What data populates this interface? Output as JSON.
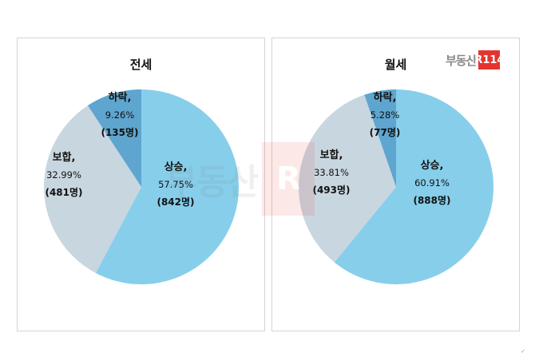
{
  "logo": {
    "text": "부동산",
    "badge": "R114"
  },
  "chart_data": [
    {
      "type": "pie",
      "title": "전세",
      "slices": [
        {
          "label": "상승,",
          "percent": 57.75,
          "percent_text": "57.75%",
          "count_text": "(842명)",
          "color": "#87ceeb"
        },
        {
          "label": "보합,",
          "percent": 32.99,
          "percent_text": "32.99%",
          "count_text": "(481명)",
          "color": "#c8d6df"
        },
        {
          "label": "하락,",
          "percent": 9.26,
          "percent_text": "9.26%",
          "count_text": "(135명)",
          "color": "#5ea5cf"
        }
      ]
    },
    {
      "type": "pie",
      "title": "월세",
      "slices": [
        {
          "label": "상승,",
          "percent": 60.91,
          "percent_text": "60.91%",
          "count_text": "(888명)",
          "color": "#87ceeb"
        },
        {
          "label": "보합,",
          "percent": 33.81,
          "percent_text": "33.81%",
          "count_text": "(493명)",
          "color": "#c8d6df"
        },
        {
          "label": "하락,",
          "percent": 5.28,
          "percent_text": "5.28%",
          "count_text": "(77명)",
          "color": "#5ea5cf"
        }
      ]
    }
  ]
}
